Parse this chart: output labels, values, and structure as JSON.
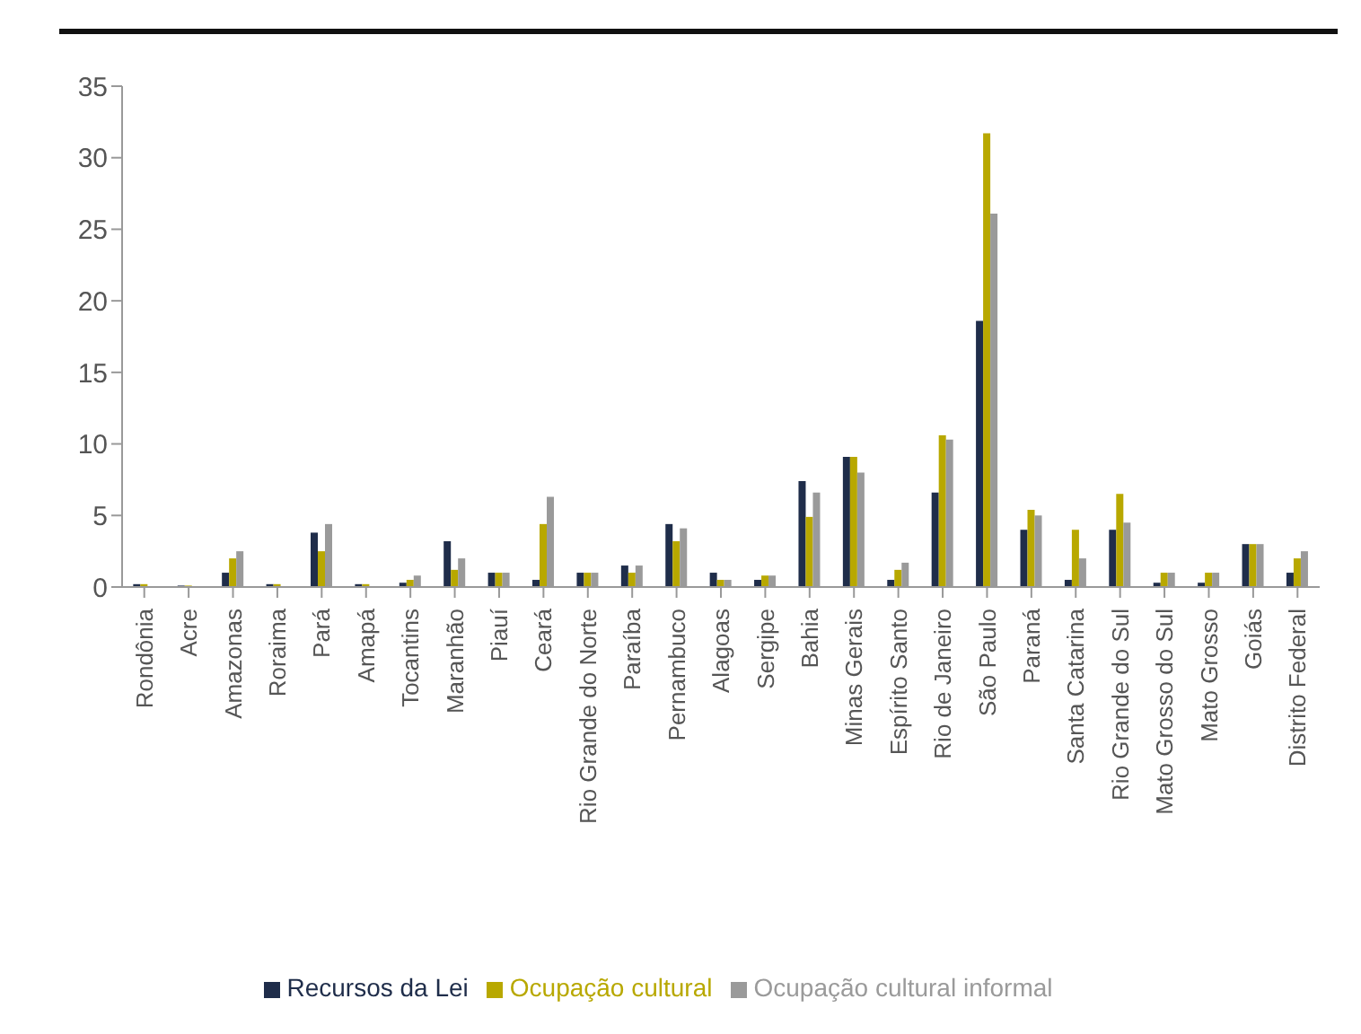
{
  "chart_data": {
    "type": "bar",
    "categories": [
      "Rondônia",
      "Acre",
      "Amazonas",
      "Roraima",
      "Pará",
      "Amapá",
      "Tocantins",
      "Maranhão",
      "Piauí",
      "Ceará",
      "Rio Grande do Norte",
      "Paraíba",
      "Pernambuco",
      "Alagoas",
      "Sergipe",
      "Bahia",
      "Minas Gerais",
      "Espírito Santo",
      "Rio de Janeiro",
      "São Paulo",
      "Paraná",
      "Santa Catarina",
      "Rio Grande do Sul",
      "Mato Grosso do Sul",
      "Mato Grosso",
      "Goiás",
      "Distrito Federal"
    ],
    "series": [
      {
        "name": "Recursos da Lei",
        "color": "#1f2d4a",
        "values": [
          0.2,
          0.1,
          1,
          0.2,
          3.8,
          0.2,
          0.3,
          3.2,
          1,
          0.5,
          1,
          1.5,
          4.4,
          1,
          0.5,
          7.4,
          9.1,
          0.5,
          6.6,
          18.6,
          4,
          0.5,
          4,
          0.3,
          0.3,
          3,
          1
        ]
      },
      {
        "name": "Ocupação cultural",
        "color": "#b8a800",
        "values": [
          0.2,
          0.1,
          2,
          0.2,
          2.5,
          0.2,
          0.5,
          1.2,
          1,
          4.4,
          1,
          1,
          3.2,
          0.5,
          0.8,
          4.9,
          9.1,
          1.2,
          10.6,
          31.7,
          5.4,
          4,
          6.5,
          1,
          1,
          3,
          2
        ]
      },
      {
        "name": "Ocupação cultural informal",
        "color": "#9a9a9a",
        "values": [
          null,
          null,
          2.5,
          null,
          4.4,
          null,
          0.8,
          2,
          1,
          6.3,
          1,
          1.5,
          4.1,
          0.5,
          0.8,
          6.6,
          8,
          1.7,
          10.3,
          26.1,
          5,
          2,
          4.5,
          1,
          1,
          3,
          2.5
        ]
      }
    ],
    "ylim": [
      0,
      35
    ],
    "yticks": [
      0,
      5,
      10,
      15,
      20,
      25,
      30,
      35
    ],
    "grid": false,
    "legend": "bottom"
  }
}
